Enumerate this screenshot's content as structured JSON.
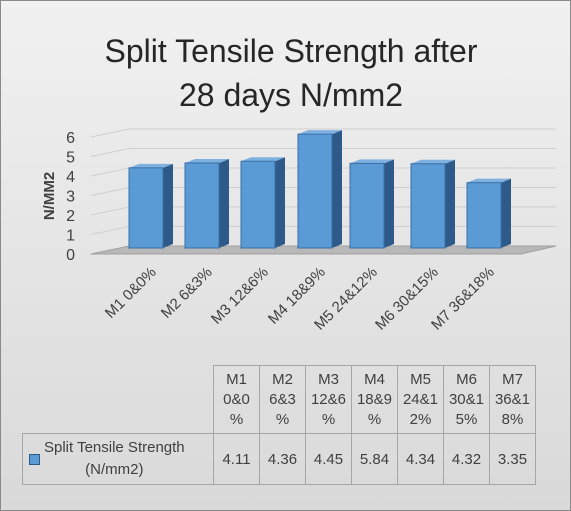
{
  "chart_data": {
    "type": "bar",
    "title": "Split Tensile Strength after 28 days N/mm2",
    "title_lines": [
      "Split Tensile Strength after",
      "28 days N/mm2"
    ],
    "ylabel": "N/MM2",
    "xlabel": "",
    "ylim": [
      0,
      6
    ],
    "yticks": [
      "0",
      "1",
      "2",
      "3",
      "4",
      "5",
      "6"
    ],
    "categories": [
      "M1 0&0%",
      "M2 6&3%",
      "M3 12&6%",
      "M4 18&9%",
      "M5 24&12%",
      "M6 30&15%",
      "M7 36&18%"
    ],
    "series": [
      {
        "name": "Split Tensile  Strength (N/mm2)",
        "values": [
          4.11,
          4.36,
          4.45,
          5.84,
          4.34,
          4.32,
          3.35
        ],
        "color": "#5b9bd5"
      }
    ],
    "bar_style": "3d",
    "grid": true
  },
  "table": {
    "column_headers": [
      [
        "M1",
        "0&0",
        "%"
      ],
      [
        "M2",
        "6&3",
        "%"
      ],
      [
        "M3",
        "12&6",
        "%"
      ],
      [
        "M4",
        "18&9",
        "%"
      ],
      [
        "M5",
        "24&1",
        "2%"
      ],
      [
        "M6",
        "30&1",
        "5%"
      ],
      [
        "M7",
        "36&1",
        "8%"
      ]
    ],
    "row_header": [
      "Split Tensile  Strength",
      "(N/mm2)"
    ],
    "values": [
      "4.11",
      "4.36",
      "4.45",
      "5.84",
      "4.34",
      "4.32",
      "3.35"
    ]
  },
  "colors": {
    "bar_front": "#5b9bd5",
    "bar_side": "#2e5a8a",
    "background": "#e4e4e4"
  }
}
